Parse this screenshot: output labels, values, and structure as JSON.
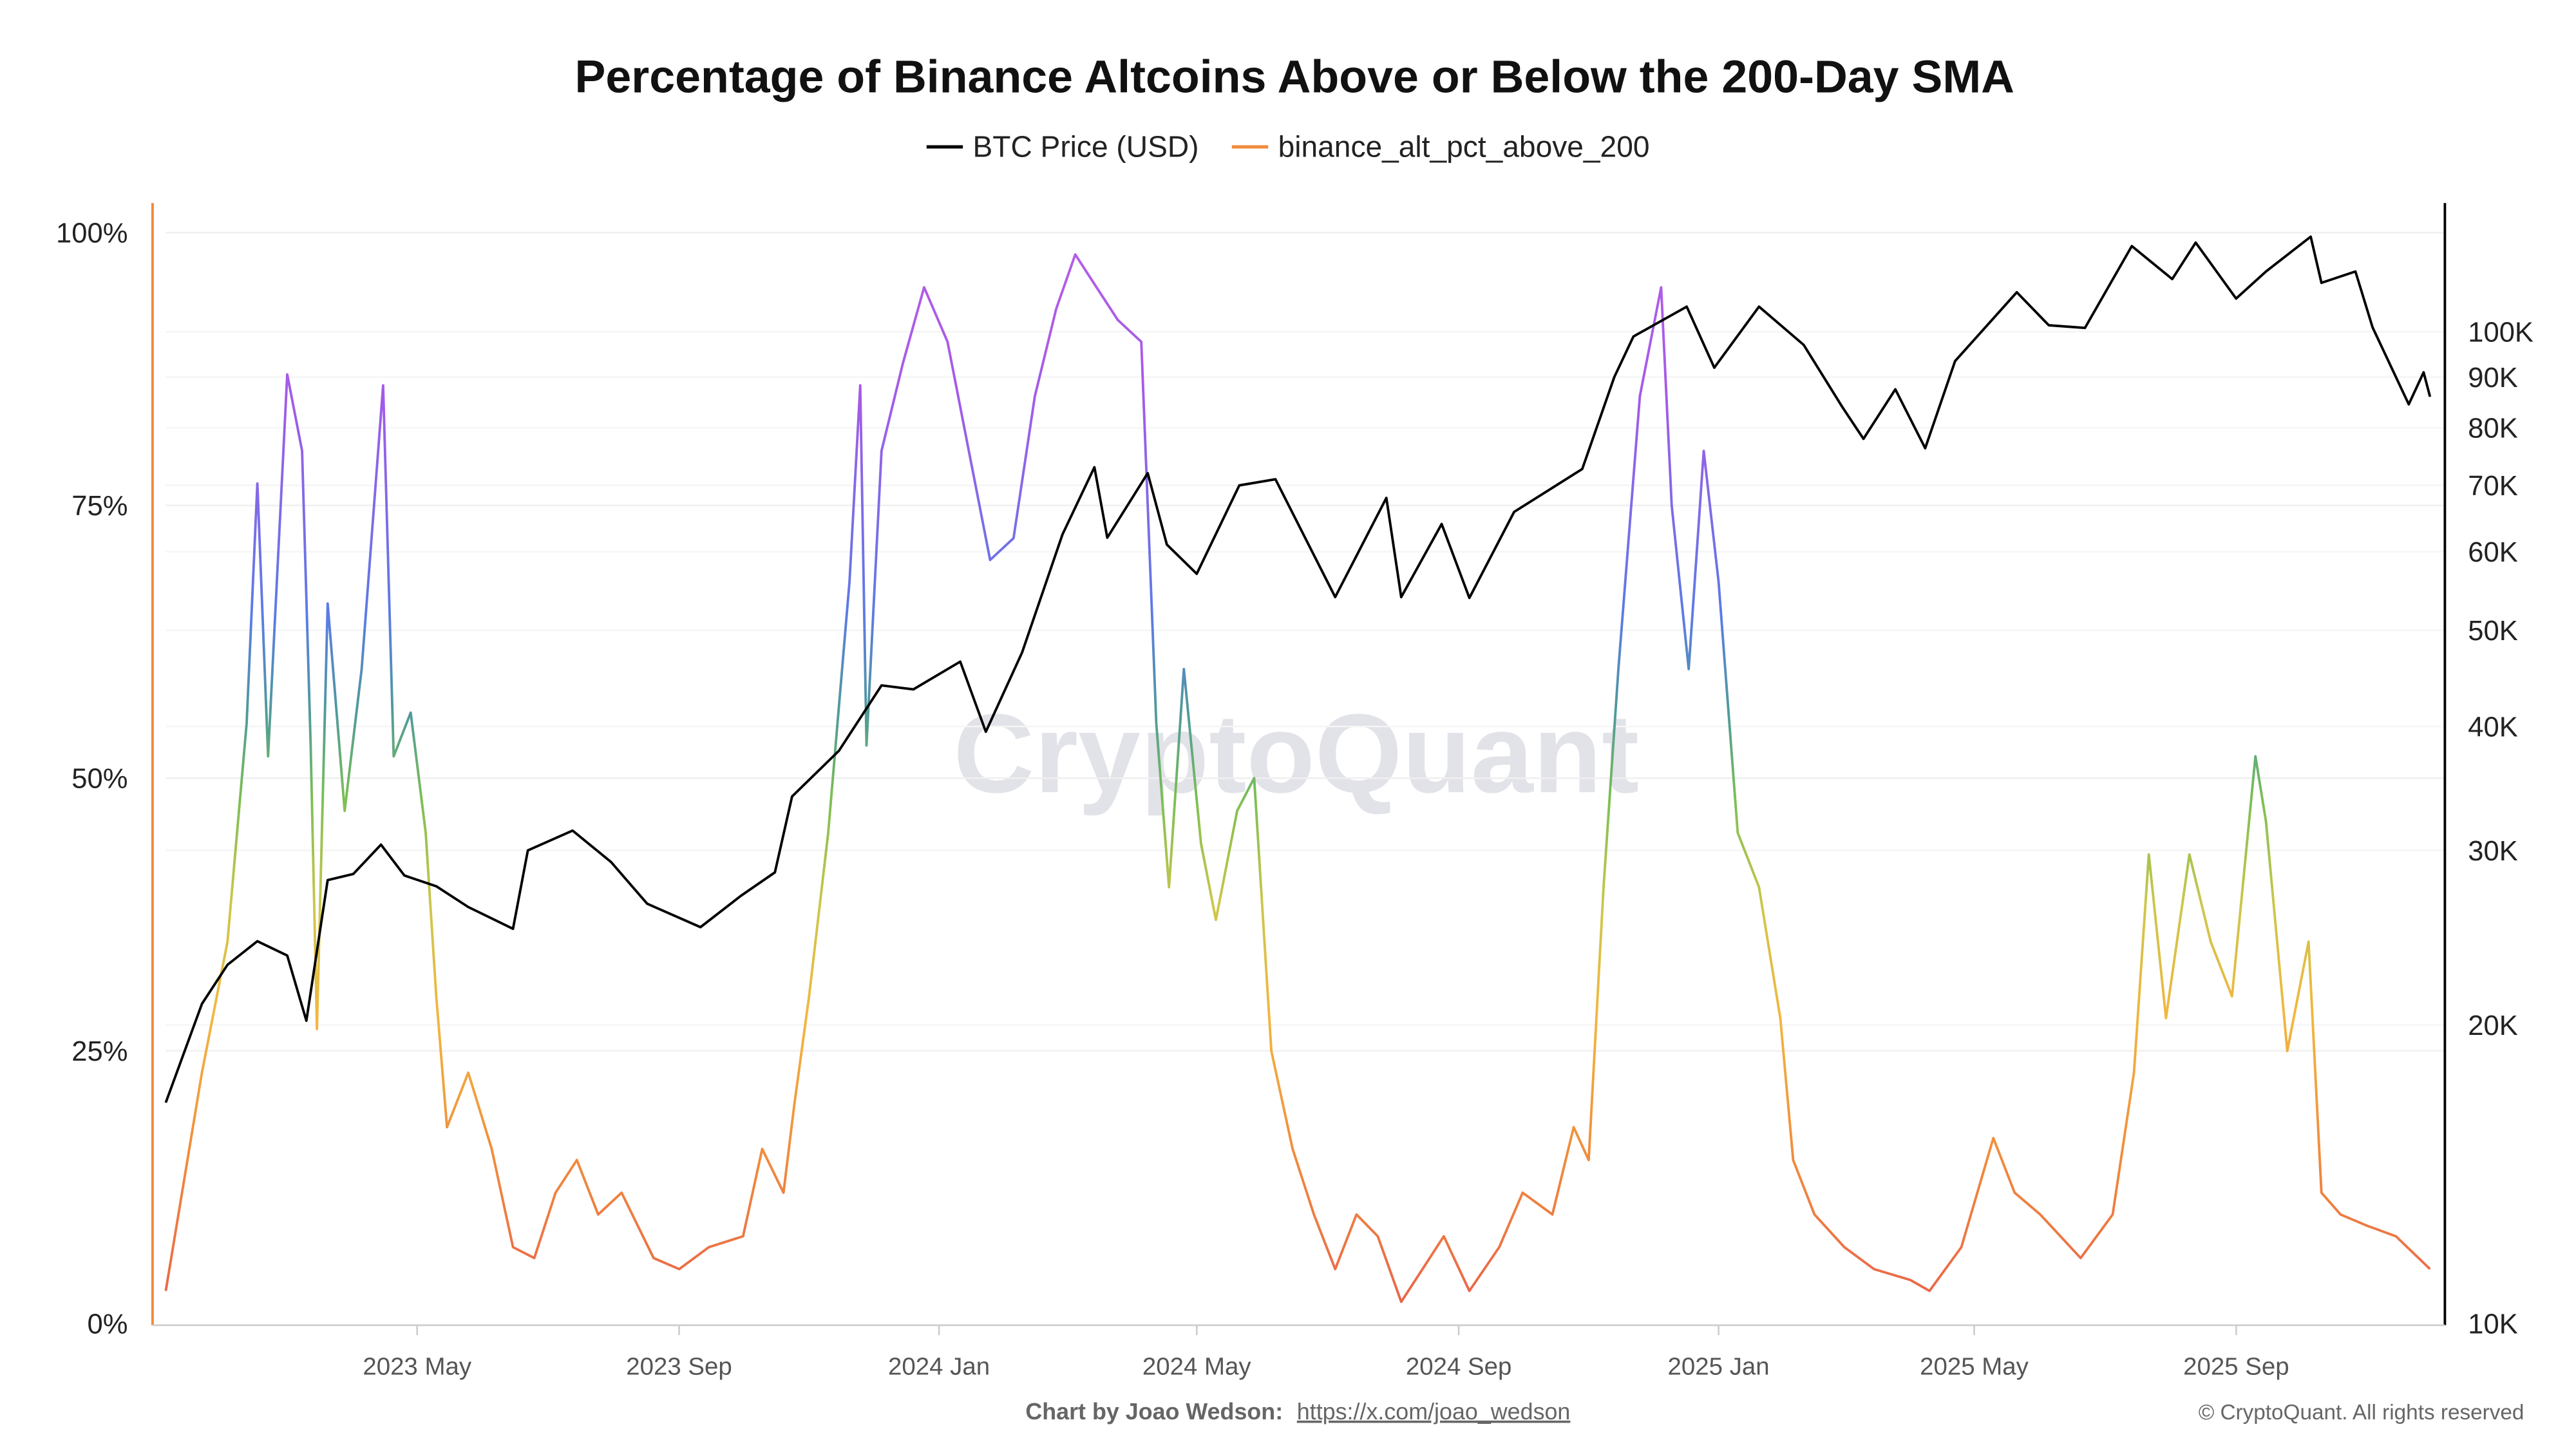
{
  "chart_data": {
    "type": "line",
    "title": "Percentage of Binance Altcoins Above or Below the 200-Day SMA",
    "legend_position": "top-center",
    "grid": true,
    "watermark": "CryptoQuant",
    "x_ticks": [
      {
        "date": "2023-05-01",
        "label": "2023 May"
      },
      {
        "date": "2023-09-01",
        "label": "2023 Sep"
      },
      {
        "date": "2024-01-01",
        "label": "2024 Jan"
      },
      {
        "date": "2024-05-01",
        "label": "2024 May"
      },
      {
        "date": "2024-09-01",
        "label": "2024 Sep"
      },
      {
        "date": "2025-01-01",
        "label": "2025 Jan"
      },
      {
        "date": "2025-05-01",
        "label": "2025 May"
      },
      {
        "date": "2025-09-01",
        "label": "2025 Sep"
      }
    ],
    "xlim": [
      "2023-01-03",
      "2025-12-01"
    ],
    "y_left": {
      "scale": "linear",
      "ylim": [
        0,
        100
      ],
      "ticks": [
        {
          "v": 0,
          "label": "0%"
        },
        {
          "v": 25,
          "label": "25%"
        },
        {
          "v": 50,
          "label": "50%"
        },
        {
          "v": 75,
          "label": "75%"
        },
        {
          "v": 100,
          "label": "100%"
        }
      ]
    },
    "y_right": {
      "scale": "log",
      "ylim": [
        10000,
        135000
      ],
      "ticks": [
        {
          "v": 10000,
          "label": "10K"
        },
        {
          "v": 20000,
          "label": "20K"
        },
        {
          "v": 30000,
          "label": "30K"
        },
        {
          "v": 40000,
          "label": "40K"
        },
        {
          "v": 50000,
          "label": "50K"
        },
        {
          "v": 60000,
          "label": "60K"
        },
        {
          "v": 70000,
          "label": "70K"
        },
        {
          "v": 80000,
          "label": "80K"
        },
        {
          "v": 90000,
          "label": "90K"
        },
        {
          "v": 100000,
          "label": "100K"
        }
      ]
    },
    "series": [
      {
        "name": "BTC Price (USD)",
        "axis": "right",
        "color": "#000000",
        "x": [
          "2023-01-03",
          "2023-01-20",
          "2023-02-01",
          "2023-02-15",
          "2023-03-01",
          "2023-03-10",
          "2023-03-20",
          "2023-04-01",
          "2023-04-14",
          "2023-04-25",
          "2023-05-10",
          "2023-05-25",
          "2023-06-15",
          "2023-06-22",
          "2023-07-13",
          "2023-07-31",
          "2023-08-17",
          "2023-09-11",
          "2023-09-30",
          "2023-10-16",
          "2023-10-24",
          "2023-11-15",
          "2023-12-05",
          "2023-12-20",
          "2024-01-11",
          "2024-01-23",
          "2024-02-09",
          "2024-02-28",
          "2024-03-14",
          "2024-03-20",
          "2024-04-08",
          "2024-04-17",
          "2024-05-01",
          "2024-05-21",
          "2024-06-07",
          "2024-07-05",
          "2024-07-29",
          "2024-08-05",
          "2024-08-24",
          "2024-09-06",
          "2024-09-27",
          "2024-10-29",
          "2024-11-13",
          "2024-11-22",
          "2024-12-17",
          "2024-12-30",
          "2025-01-20",
          "2025-02-10",
          "2025-02-28",
          "2025-03-10",
          "2025-03-25",
          "2025-04-08",
          "2025-04-22",
          "2025-05-21",
          "2025-06-05",
          "2025-06-22",
          "2025-07-14",
          "2025-08-02",
          "2025-08-13",
          "2025-09-01",
          "2025-09-15",
          "2025-10-06",
          "2025-10-11",
          "2025-10-27",
          "2025-11-04",
          "2025-11-21",
          "2025-11-28",
          "2025-12-01"
        ],
        "values": [
          16700,
          21000,
          23000,
          24300,
          23500,
          20200,
          28000,
          28400,
          30400,
          28300,
          27600,
          26300,
          25000,
          30000,
          31400,
          29200,
          26500,
          25100,
          27000,
          28500,
          34000,
          37800,
          44000,
          43600,
          46500,
          39500,
          47500,
          62500,
          73000,
          62000,
          72000,
          61000,
          57000,
          70000,
          71000,
          54000,
          68000,
          54000,
          64000,
          53900,
          65800,
          72700,
          90000,
          98900,
          106000,
          92000,
          106000,
          97000,
          84000,
          78000,
          87500,
          76300,
          93400,
          109600,
          101500,
          100900,
          122000,
          113000,
          123000,
          108000,
          115000,
          124700,
          112000,
          115000,
          101000,
          84500,
          91000,
          86000
        ]
      },
      {
        "name": "binance_alt_pct_above_200",
        "axis": "left",
        "color": "#f08a3c",
        "x": [
          "2023-01-03",
          "2023-01-20",
          "2023-02-01",
          "2023-02-10",
          "2023-02-15",
          "2023-02-20",
          "2023-03-01",
          "2023-03-08",
          "2023-03-12",
          "2023-03-15",
          "2023-03-20",
          "2023-03-28",
          "2023-04-05",
          "2023-04-15",
          "2023-04-20",
          "2023-04-28",
          "2023-05-05",
          "2023-05-10",
          "2023-05-15",
          "2023-05-25",
          "2023-06-05",
          "2023-06-15",
          "2023-06-25",
          "2023-07-05",
          "2023-07-15",
          "2023-07-25",
          "2023-08-05",
          "2023-08-20",
          "2023-09-01",
          "2023-09-15",
          "2023-10-01",
          "2023-10-10",
          "2023-10-20",
          "2023-10-25",
          "2023-11-01",
          "2023-11-10",
          "2023-11-20",
          "2023-11-25",
          "2023-11-28",
          "2023-12-05",
          "2023-12-15",
          "2023-12-25",
          "2024-01-05",
          "2024-01-15",
          "2024-01-25",
          "2024-02-05",
          "2024-02-15",
          "2024-02-25",
          "2024-03-05",
          "2024-03-15",
          "2024-03-25",
          "2024-04-05",
          "2024-04-12",
          "2024-04-18",
          "2024-04-25",
          "2024-05-03",
          "2024-05-10",
          "2024-05-20",
          "2024-05-28",
          "2024-06-05",
          "2024-06-15",
          "2024-06-25",
          "2024-07-05",
          "2024-07-15",
          "2024-07-25",
          "2024-08-05",
          "2024-08-15",
          "2024-08-25",
          "2024-09-06",
          "2024-09-20",
          "2024-10-01",
          "2024-10-15",
          "2024-10-25",
          "2024-11-01",
          "2024-11-08",
          "2024-11-15",
          "2024-11-25",
          "2024-12-05",
          "2024-12-10",
          "2024-12-18",
          "2024-12-25",
          "2025-01-01",
          "2025-01-10",
          "2025-01-20",
          "2025-01-30",
          "2025-02-05",
          "2025-02-15",
          "2025-03-01",
          "2025-03-15",
          "2025-04-01",
          "2025-04-10",
          "2025-04-25",
          "2025-05-10",
          "2025-05-20",
          "2025-06-01",
          "2025-06-20",
          "2025-07-05",
          "2025-07-15",
          "2025-07-22",
          "2025-07-30",
          "2025-08-10",
          "2025-08-20",
          "2025-08-30",
          "2025-09-10",
          "2025-09-15",
          "2025-09-25",
          "2025-10-05",
          "2025-10-11",
          "2025-10-20",
          "2025-11-01",
          "2025-11-15",
          "2025-12-01"
        ],
        "values": [
          3,
          23,
          35,
          55,
          77,
          52,
          87,
          80,
          53,
          27,
          66,
          47,
          60,
          86,
          52,
          56,
          45,
          30,
          18,
          23,
          16,
          7,
          6,
          12,
          15,
          10,
          12,
          6,
          5,
          7,
          8,
          16,
          12,
          20,
          30,
          45,
          68,
          86,
          53,
          80,
          88,
          95,
          90,
          80,
          70,
          72,
          85,
          93,
          98,
          95,
          92,
          90,
          55,
          40,
          60,
          44,
          37,
          47,
          50,
          25,
          16,
          10,
          5,
          10,
          8,
          2,
          5,
          8,
          3,
          7,
          12,
          10,
          18,
          15,
          40,
          60,
          85,
          95,
          75,
          60,
          80,
          68,
          45,
          40,
          28,
          15,
          10,
          7,
          5,
          4,
          3,
          7,
          17,
          12,
          10,
          6,
          10,
          23,
          43,
          28,
          43,
          35,
          30,
          52,
          46,
          25,
          35,
          12,
          10,
          9,
          8,
          5
        ]
      }
    ],
    "color_scale": [
      {
        "v": 0,
        "color": "#e8604c"
      },
      {
        "v": 15,
        "color": "#f08a3c"
      },
      {
        "v": 28,
        "color": "#f2b640"
      },
      {
        "v": 38,
        "color": "#cfc64a"
      },
      {
        "v": 48,
        "color": "#7cbf52"
      },
      {
        "v": 56,
        "color": "#4f9a9a"
      },
      {
        "v": 65,
        "color": "#5b7be6"
      },
      {
        "v": 85,
        "color": "#a45ae8"
      },
      {
        "v": 100,
        "color": "#b65ee6"
      }
    ]
  },
  "footer": {
    "credit_label": "Chart by Joao Wedson:",
    "credit_link": "https://x.com/joao_wedson",
    "copyright": "© CryptoQuant. All rights reserved"
  }
}
